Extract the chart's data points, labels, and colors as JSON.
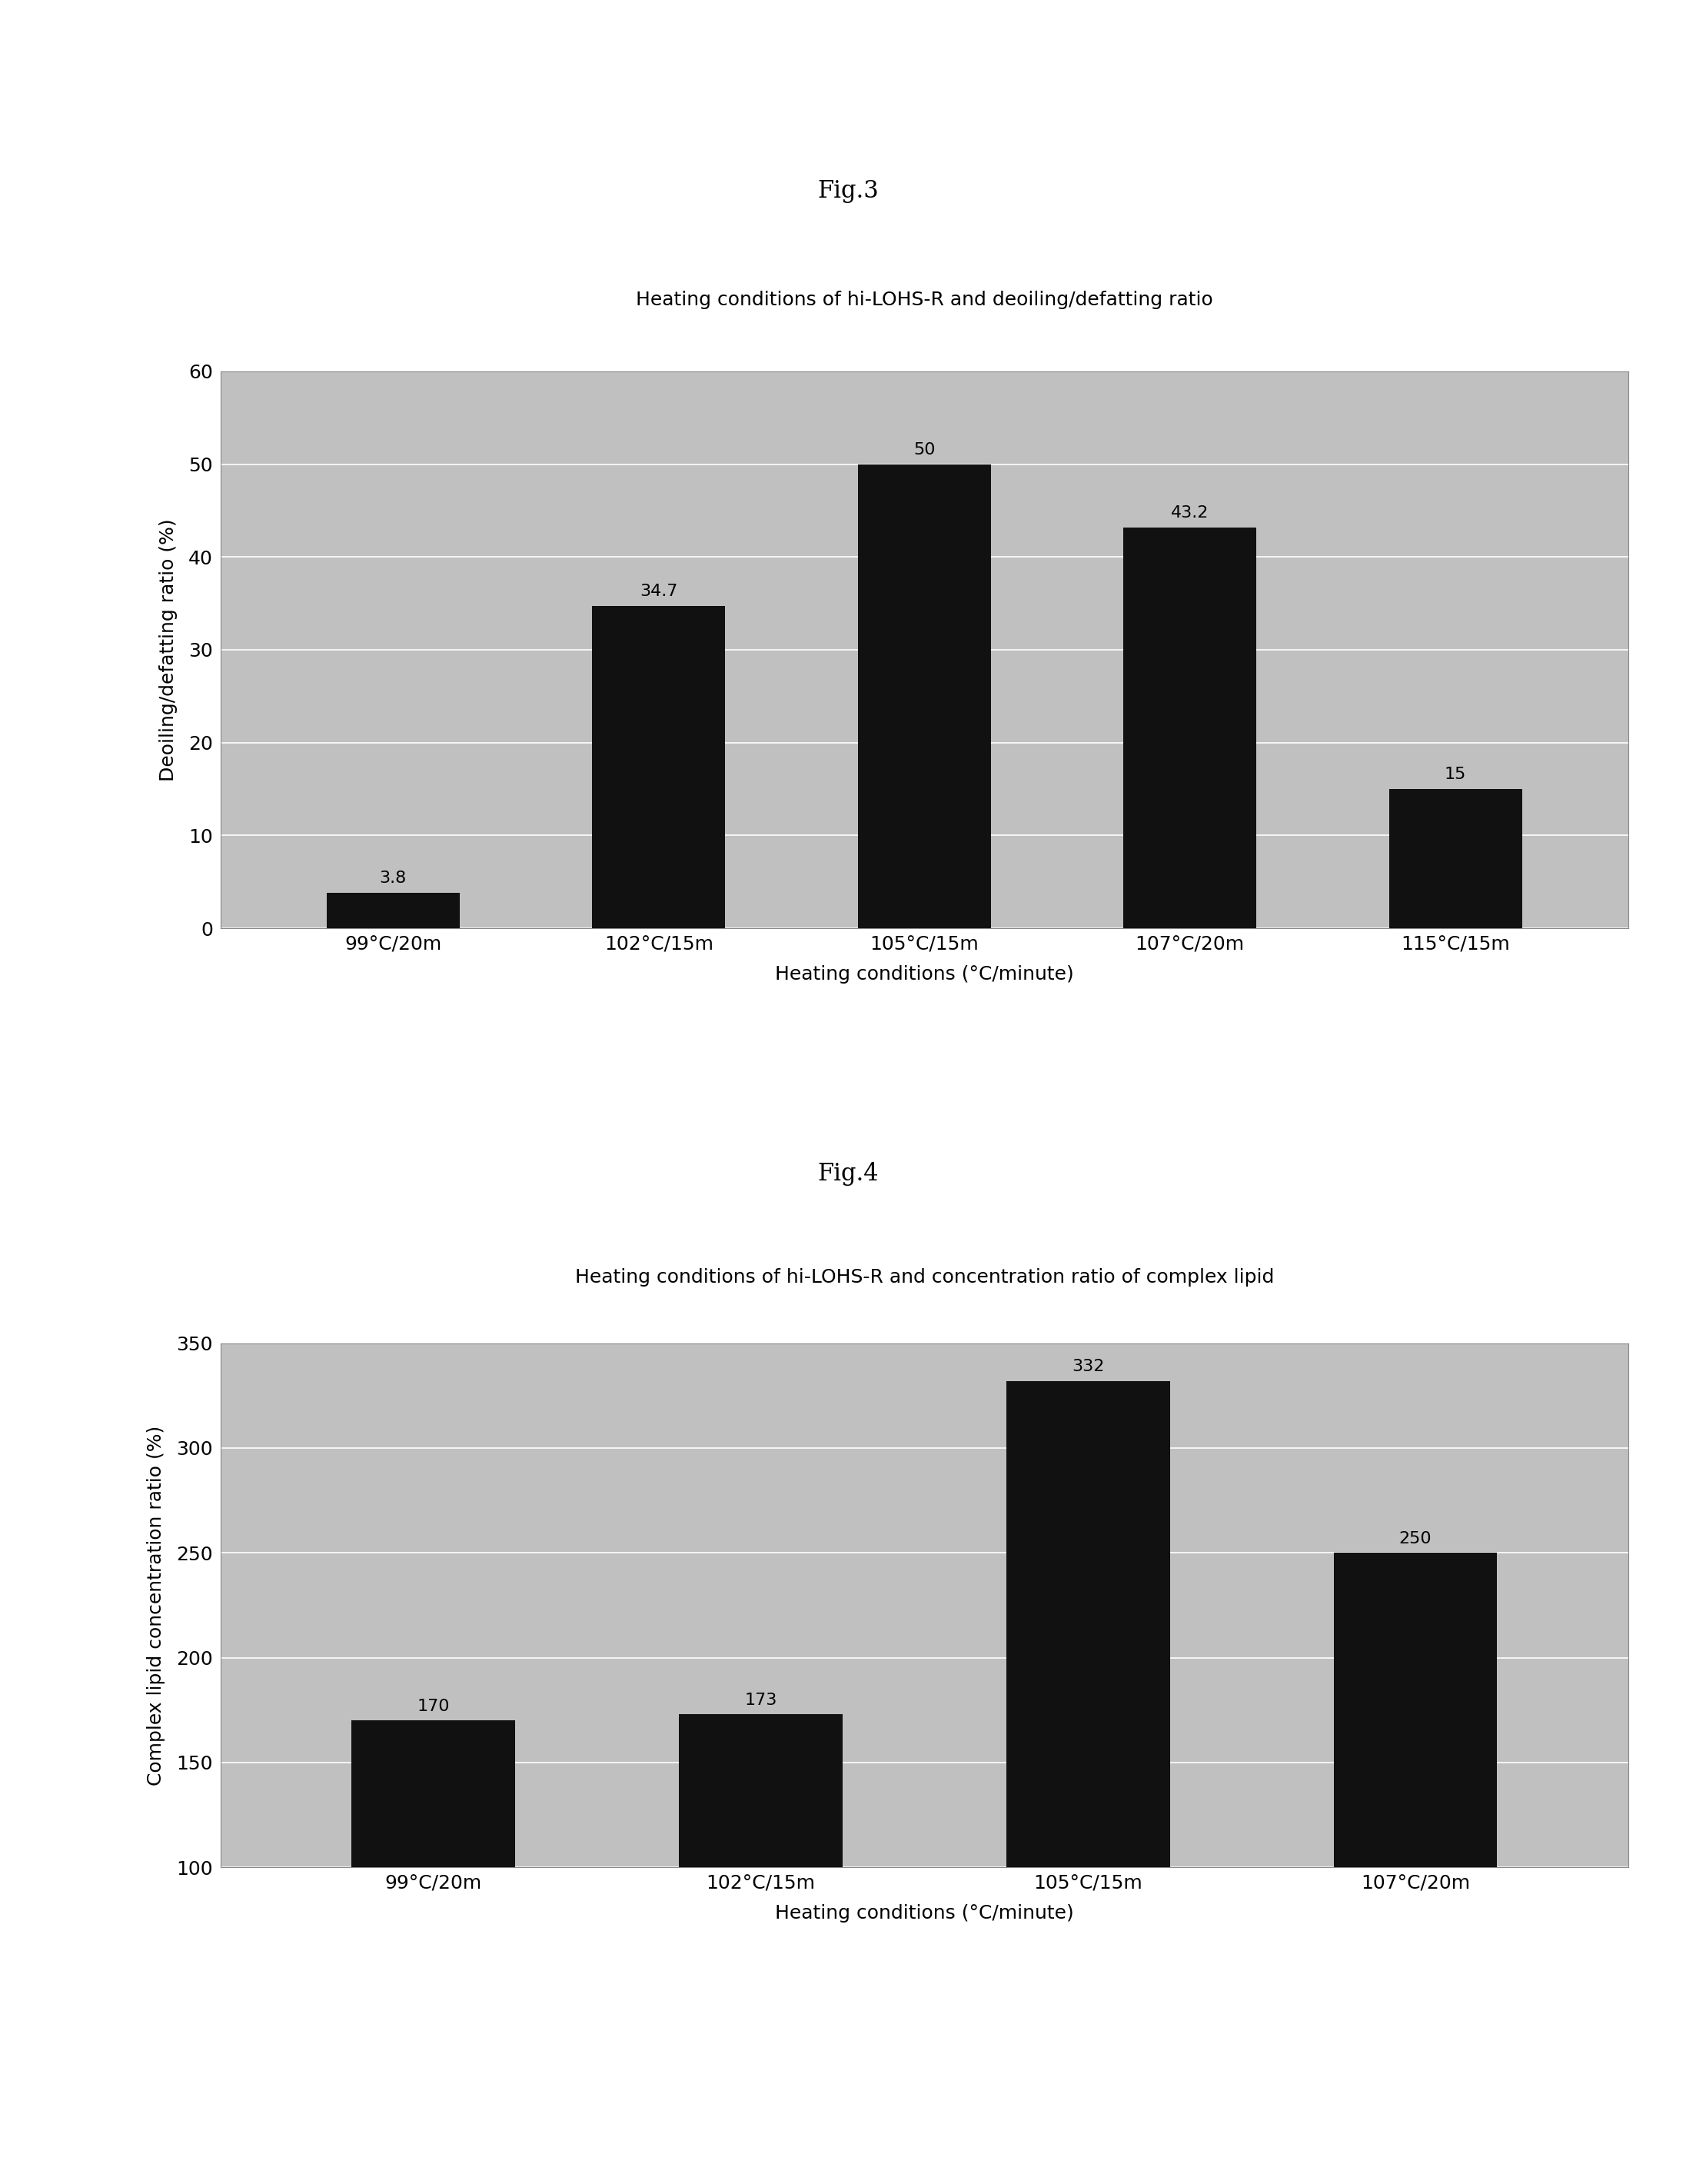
{
  "fig3": {
    "title_above": "Fig.3",
    "chart_title": "Heating conditions of hi-LOHS-R and deoiling/defatting ratio",
    "categories": [
      "99°C/20m",
      "102°C/15m",
      "105°C/15m",
      "107°C/20m",
      "115°C/15m"
    ],
    "values": [
      3.8,
      34.7,
      50,
      43.2,
      15
    ],
    "ylabel": "Deoiling/defatting ratio (%)",
    "xlabel": "Heating conditions (°C/minute)",
    "ylim": [
      0,
      60
    ],
    "yticks": [
      0,
      10,
      20,
      30,
      40,
      50,
      60
    ],
    "bar_color": "#111111",
    "bg_color": "#c0c0c0",
    "title_bg_color": "#d8d8d8",
    "label_fontsize": 18,
    "title_fontsize": 18,
    "figlabel_fontsize": 22,
    "value_fontsize": 16,
    "bar_width": 0.5
  },
  "fig4": {
    "title_above": "Fig.4",
    "chart_title": "Heating conditions of hi-LOHS-R and concentration ratio of complex lipid",
    "categories": [
      "99°C/20m",
      "102°C/15m",
      "105°C/15m",
      "107°C/20m"
    ],
    "values": [
      170,
      173,
      332,
      250
    ],
    "ylabel": "Complex lipid concentration ratio (%)",
    "xlabel": "Heating conditions (°C/minute)",
    "ylim": [
      100,
      350
    ],
    "yticks": [
      100,
      150,
      200,
      250,
      300,
      350
    ],
    "bar_color": "#111111",
    "bg_color": "#c0c0c0",
    "title_bg_color": "#d8d8d8",
    "label_fontsize": 18,
    "title_fontsize": 18,
    "figlabel_fontsize": 22,
    "value_fontsize": 16,
    "bar_width": 0.5
  },
  "page_bg": "#ffffff"
}
